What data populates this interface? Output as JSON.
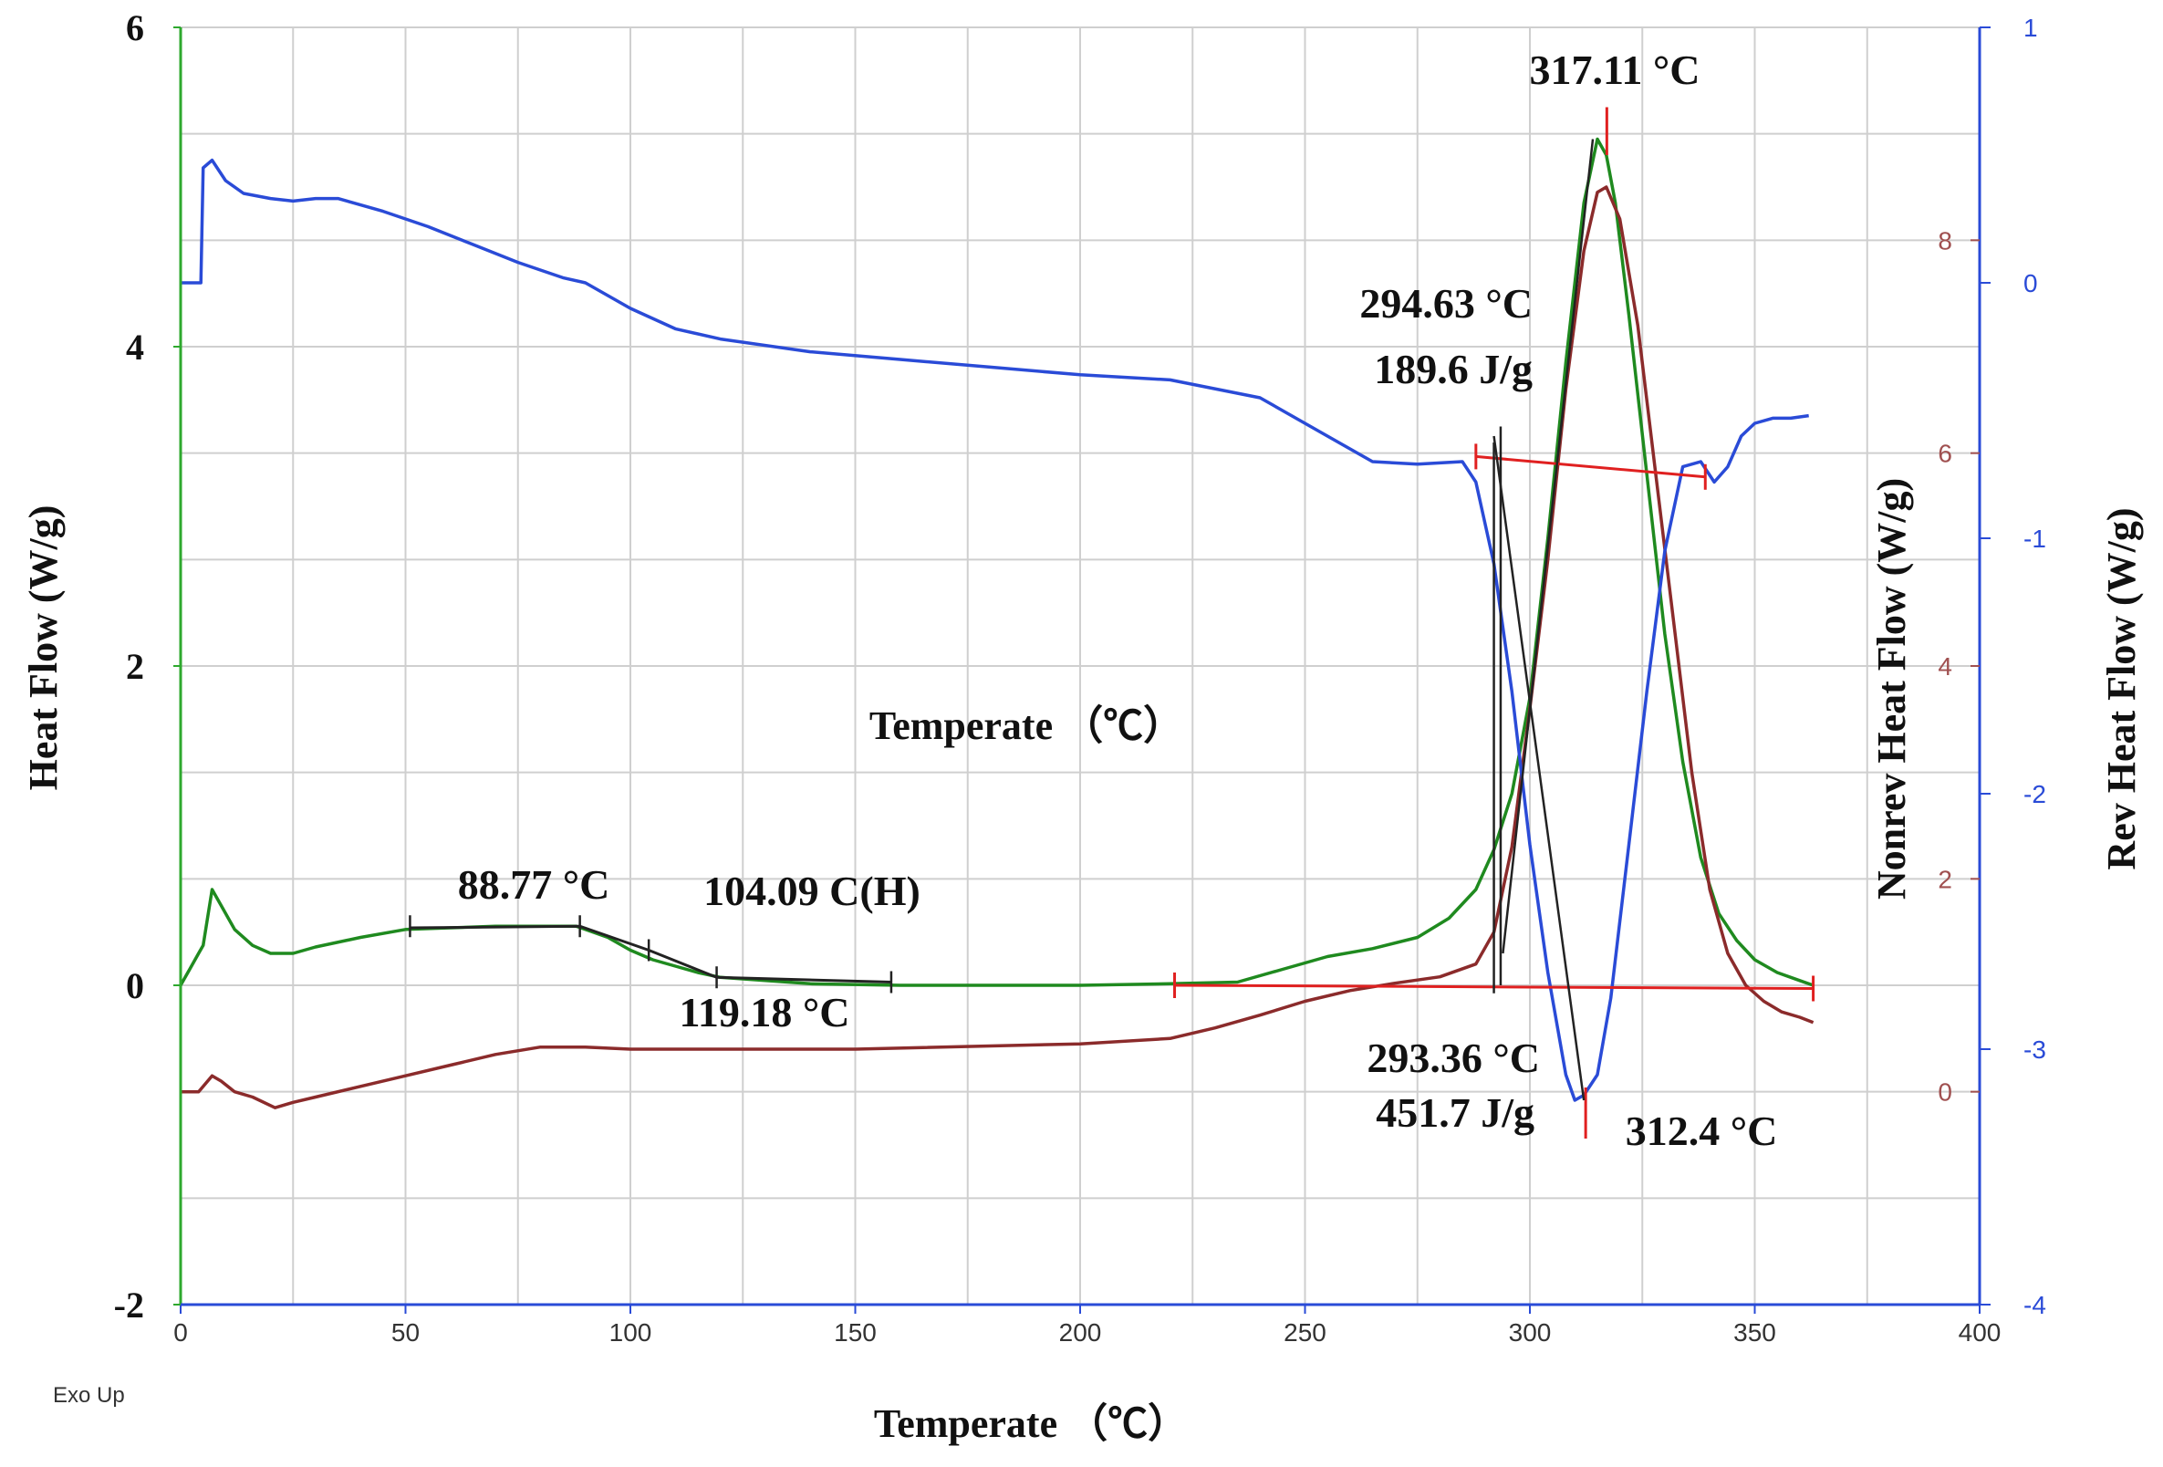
{
  "chart_data": {
    "type": "line",
    "title": "",
    "xlabel": "Temperate （℃）",
    "xlim": [
      0,
      400
    ],
    "x_ticks": [
      "0",
      "50",
      "100",
      "150",
      "200",
      "250",
      "300",
      "350",
      "400"
    ],
    "y_left": {
      "label": "Heat Flow (W/g)",
      "lim": [
        -2,
        6
      ],
      "ticks": [
        "-2",
        "0",
        "2",
        "4",
        "6"
      ]
    },
    "y_right1": {
      "label": "Nonrev Heat Flow (W/g)",
      "lim": [
        -2,
        10
      ],
      "ticks": [
        "0",
        "2",
        "4",
        "6",
        "8"
      ],
      "color": "#a05050"
    },
    "y_right2": {
      "label": "Rev Heat Flow (W/g)",
      "lim": [
        -4,
        1
      ],
      "ticks": [
        "-4",
        "-3",
        "-2",
        "-1",
        "0",
        "1"
      ],
      "color": "#2a4bd7"
    },
    "grid": true,
    "exo_label": "Exo Up",
    "mid_label": "Temperate （℃）",
    "series": [
      {
        "key": "heat_flow",
        "axis": "left",
        "color": "#1f8a1f",
        "x": [
          0,
          2,
          4,
          5,
          7,
          9,
          12,
          16,
          20,
          25,
          30,
          40,
          50,
          60,
          70,
          80,
          88,
          95,
          100,
          105,
          110,
          115,
          120,
          130,
          140,
          160,
          180,
          200,
          220,
          235,
          245,
          255,
          265,
          275,
          282,
          288,
          292,
          296,
          300,
          304,
          308,
          312,
          315,
          317,
          319,
          322,
          326,
          330,
          334,
          338,
          342,
          346,
          350,
          355,
          360,
          363
        ],
        "y": [
          0,
          0.1,
          0.2,
          0.25,
          0.6,
          0.5,
          0.35,
          0.25,
          0.2,
          0.2,
          0.24,
          0.3,
          0.35,
          0.36,
          0.37,
          0.37,
          0.37,
          0.3,
          0.22,
          0.16,
          0.12,
          0.08,
          0.05,
          0.03,
          0.01,
          0.0,
          0.0,
          0.0,
          0.01,
          0.02,
          0.1,
          0.18,
          0.23,
          0.3,
          0.42,
          0.6,
          0.85,
          1.2,
          1.8,
          2.8,
          3.9,
          4.9,
          5.3,
          5.2,
          4.9,
          4.2,
          3.2,
          2.2,
          1.4,
          0.8,
          0.45,
          0.28,
          0.16,
          0.08,
          0.03,
          0.0
        ]
      },
      {
        "key": "nonrev_heat_flow",
        "axis": "right1",
        "color": "#8b2b2b",
        "x": [
          0,
          4,
          7,
          9,
          12,
          16,
          21,
          25,
          30,
          40,
          50,
          60,
          70,
          80,
          90,
          100,
          150,
          200,
          220,
          230,
          240,
          250,
          260,
          270,
          280,
          288,
          292,
          296,
          300,
          304,
          308,
          312,
          315,
          317,
          320,
          324,
          328,
          332,
          336,
          340,
          344,
          348,
          352,
          356,
          360,
          363
        ],
        "y": [
          0,
          0,
          0.15,
          0.1,
          0.0,
          -0.05,
          -0.15,
          -0.1,
          -0.05,
          0.05,
          0.15,
          0.25,
          0.35,
          0.42,
          0.42,
          0.4,
          0.4,
          0.45,
          0.5,
          0.6,
          0.72,
          0.85,
          0.95,
          1.02,
          1.08,
          1.2,
          1.5,
          2.3,
          3.6,
          5.0,
          6.6,
          7.9,
          8.45,
          8.5,
          8.2,
          7.2,
          5.8,
          4.4,
          3.0,
          1.9,
          1.3,
          1.0,
          0.85,
          0.75,
          0.7,
          0.65
        ]
      },
      {
        "key": "rev_heat_flow",
        "axis": "right2",
        "color": "#2a4bd7",
        "x": [
          0,
          4.5,
          5,
          7,
          10,
          14,
          20,
          25,
          30,
          35,
          45,
          55,
          65,
          75,
          85,
          90,
          100,
          110,
          120,
          140,
          160,
          180,
          200,
          220,
          240,
          255,
          265,
          275,
          285,
          288,
          292,
          296,
          300,
          304,
          308,
          310,
          312,
          315,
          318,
          322,
          326,
          330,
          334,
          338,
          341,
          344,
          347,
          350,
          354,
          358,
          362
        ],
        "y": [
          0,
          0,
          0.45,
          0.48,
          0.4,
          0.35,
          0.33,
          0.32,
          0.33,
          0.33,
          0.28,
          0.22,
          0.15,
          0.08,
          0.02,
          0.0,
          -0.1,
          -0.18,
          -0.22,
          -0.27,
          -0.3,
          -0.33,
          -0.36,
          -0.38,
          -0.45,
          -0.6,
          -0.7,
          -0.71,
          -0.7,
          -0.78,
          -1.1,
          -1.6,
          -2.2,
          -2.7,
          -3.1,
          -3.2,
          -3.18,
          -3.1,
          -2.8,
          -2.2,
          -1.6,
          -1.05,
          -0.72,
          -0.7,
          -0.78,
          -0.72,
          -0.6,
          -0.55,
          -0.53,
          -0.53,
          -0.52
        ]
      }
    ],
    "annotations": [
      {
        "text": "317.11 °C",
        "x": 317.11
      },
      {
        "text": "294.63 °C",
        "x": 294.63
      },
      {
        "text": "189.6 J/g",
        "x": 294.63
      },
      {
        "text": "88.77 °C",
        "x": 88.77
      },
      {
        "text": "104.09 C(H)",
        "x": 104.09
      },
      {
        "text": "119.18 °C",
        "x": 119.18
      },
      {
        "text": "293.36 °C",
        "x": 293.36
      },
      {
        "text": "451.7 J/g",
        "x": 293.36
      },
      {
        "text": "312.4 °C",
        "x": 312.4
      }
    ]
  }
}
